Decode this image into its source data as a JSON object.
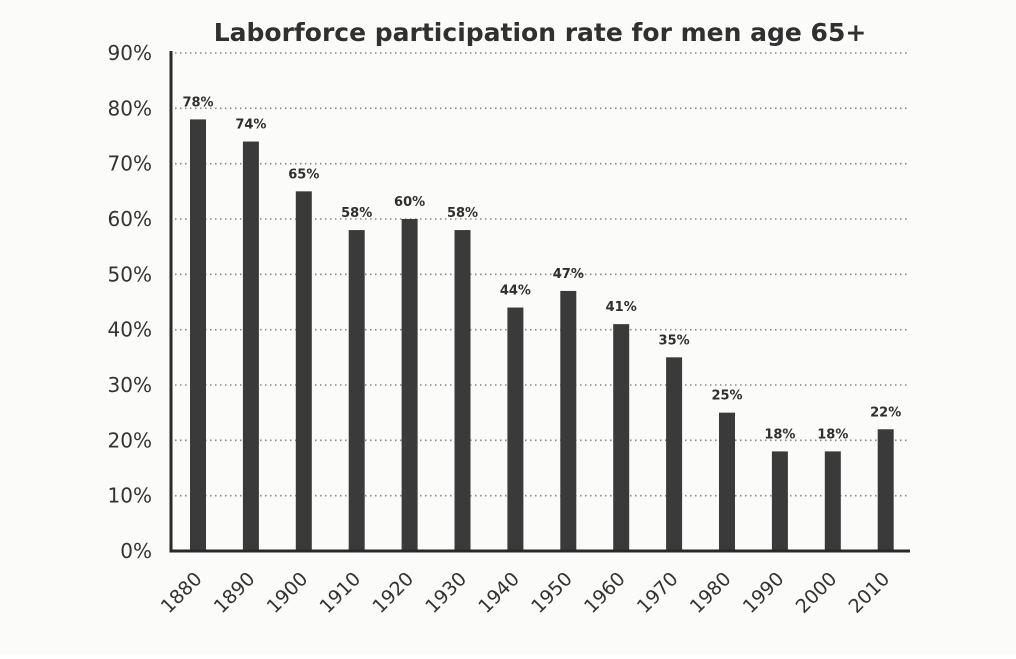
{
  "chart_data": {
    "type": "bar",
    "title": "Laborforce participation rate for men age 65+",
    "xlabel": "",
    "ylabel": "",
    "categories": [
      "1880",
      "1890",
      "1900",
      "1910",
      "1920",
      "1930",
      "1940",
      "1950",
      "1960",
      "1970",
      "1980",
      "1990",
      "2000",
      "2010"
    ],
    "values": [
      78,
      74,
      65,
      58,
      60,
      58,
      44,
      47,
      41,
      35,
      25,
      18,
      18,
      22
    ],
    "data_labels": [
      "78%",
      "74%",
      "65%",
      "58%",
      "60%",
      "58%",
      "44%",
      "47%",
      "41%",
      "35%",
      "25%",
      "18%",
      "18%",
      "22%"
    ],
    "ylim": [
      0,
      90
    ],
    "y_ticks": [
      0,
      10,
      20,
      30,
      40,
      50,
      60,
      70,
      80,
      90
    ],
    "y_tick_labels": [
      "0%",
      "10%",
      "20%",
      "30%",
      "40%",
      "50%",
      "60%",
      "70%",
      "80%",
      "90%"
    ],
    "grid": true,
    "legend": "none",
    "bar_color": "#3a3a3a",
    "grid_color": "#8a8a8a"
  }
}
